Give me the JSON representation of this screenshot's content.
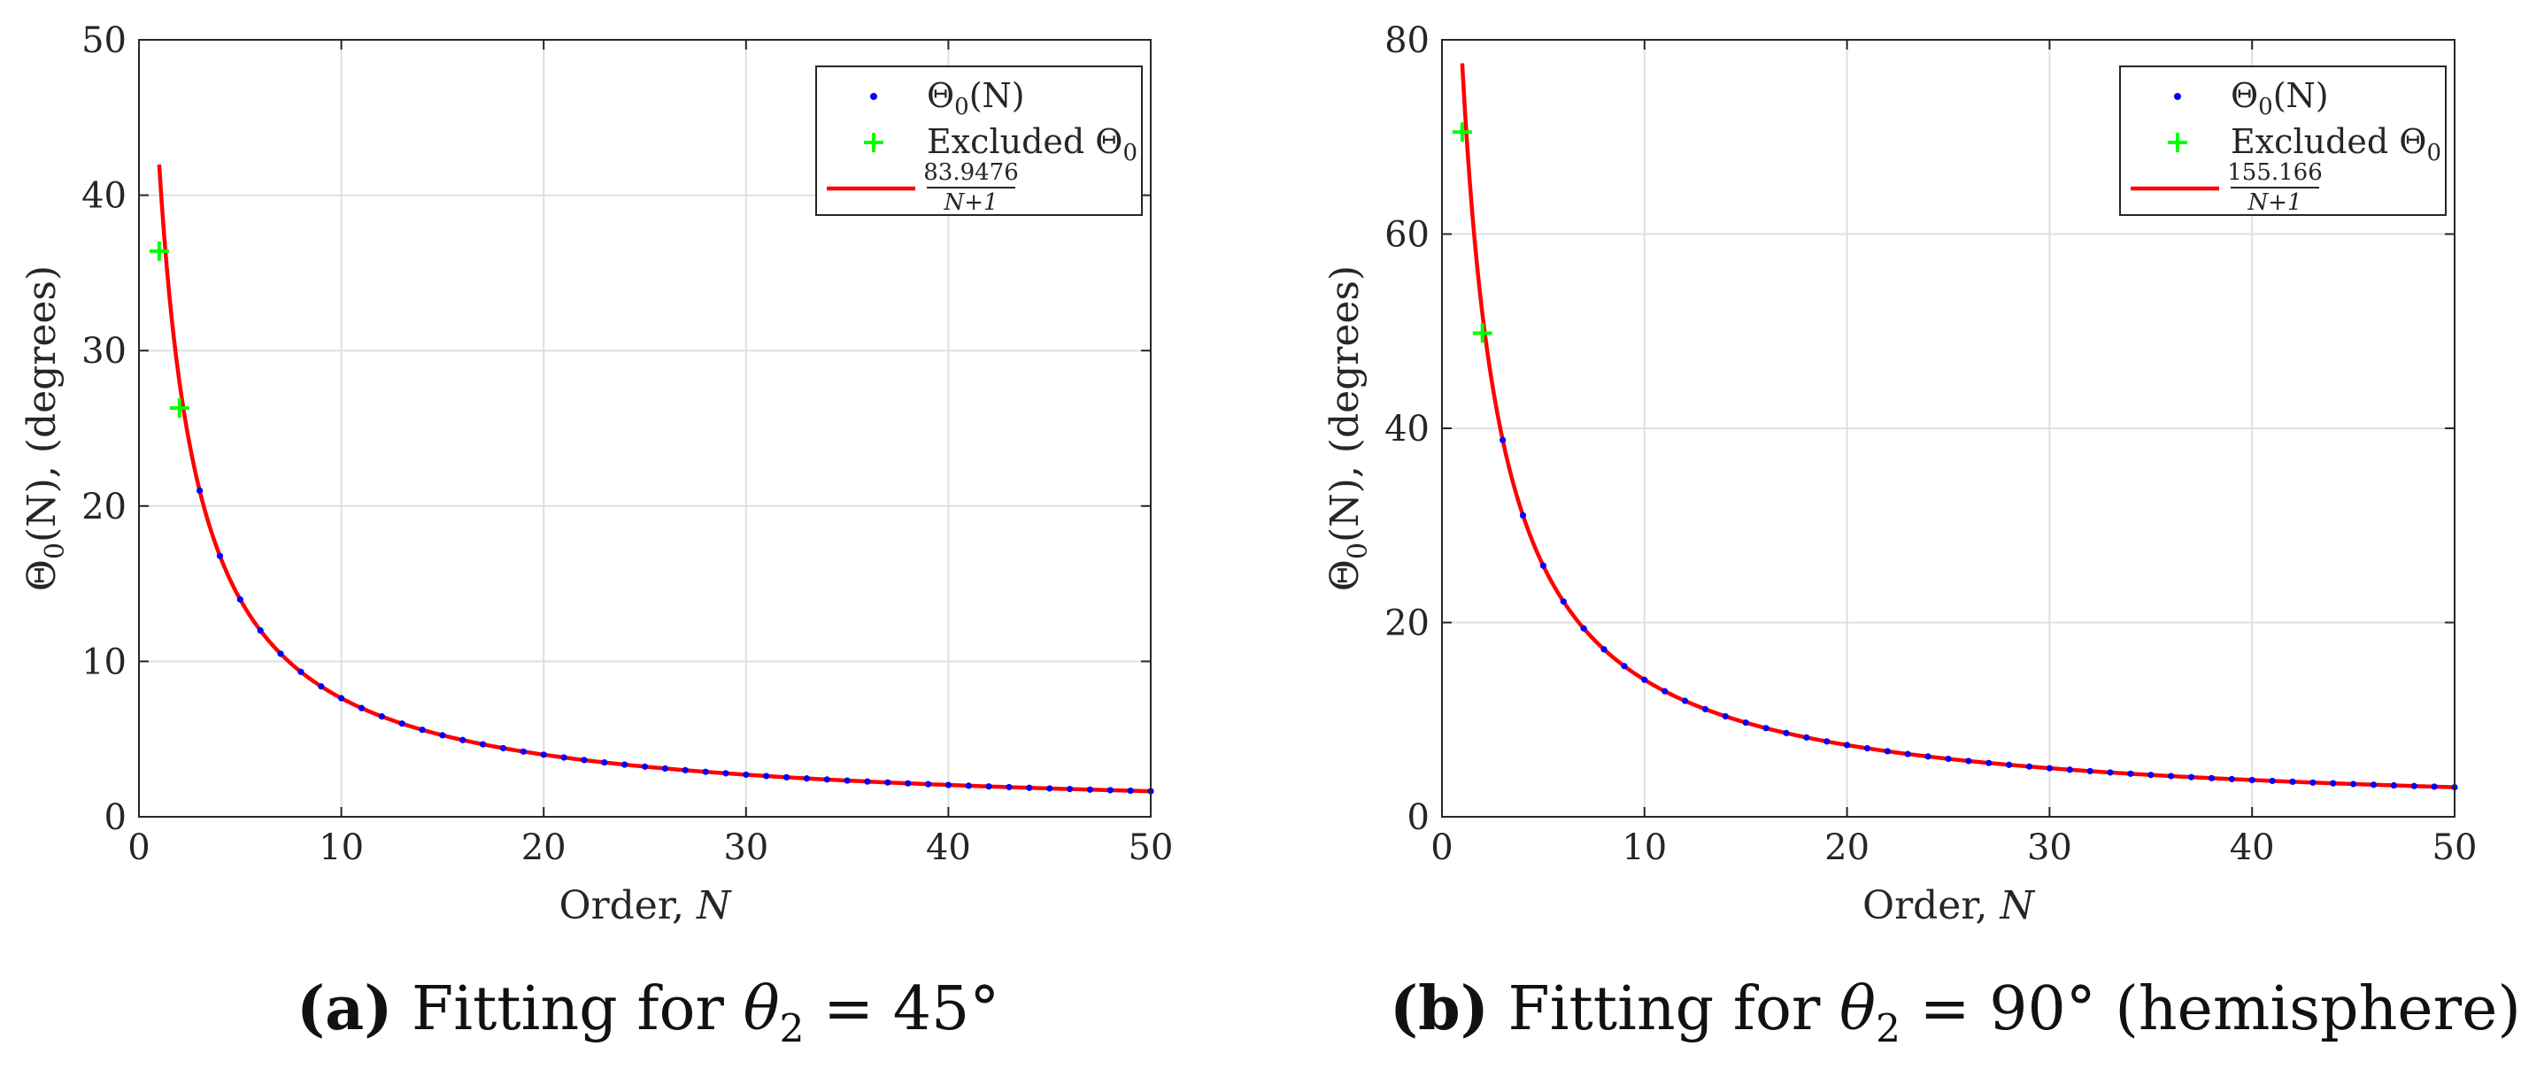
{
  "chart_data": [
    {
      "id": "a",
      "type": "scatter+line",
      "xlabel_main": "Order,",
      "xlabel_var": "N",
      "ylabel_theta": "Θ",
      "ylabel_sub": "0",
      "ylabel_rest": "(N),  (degrees)",
      "xlim": [
        0,
        50
      ],
      "ylim": [
        0,
        50
      ],
      "xticks": [
        0,
        10,
        20,
        30,
        40,
        50
      ],
      "yticks": [
        0,
        10,
        20,
        30,
        40,
        50
      ],
      "grid": true,
      "legend_position": "top-right",
      "legend": {
        "points_theta": "Θ",
        "points_sub": "0",
        "points_rest": "(N)",
        "excluded_main": "Excluded Θ",
        "excluded_sub": "0",
        "fit_numerator": "83.9476",
        "fit_denominator": "N+1"
      },
      "fit_coefficient": 83.9476,
      "points_N": [
        3,
        4,
        5,
        6,
        7,
        8,
        9,
        10,
        11,
        12,
        13,
        14,
        15,
        16,
        17,
        18,
        19,
        20,
        21,
        22,
        23,
        24,
        25,
        26,
        27,
        28,
        29,
        30,
        31,
        32,
        33,
        34,
        35,
        36,
        37,
        38,
        39,
        40,
        41,
        42,
        43,
        44,
        45,
        46,
        47,
        48,
        49,
        50
      ],
      "excluded": [
        {
          "N": 1,
          "value": 36.4
        },
        {
          "N": 2,
          "value": 26.3
        }
      ],
      "colors": {
        "points": "#0000ff",
        "excluded": "#00ff00",
        "fit": "#ff0000"
      },
      "caption": {
        "label": "(a)",
        "text": "Fitting for",
        "var": "θ",
        "sub": "2",
        "rest": "= 45°"
      }
    },
    {
      "id": "b",
      "type": "scatter+line",
      "xlabel_main": "Order,",
      "xlabel_var": "N",
      "ylabel_theta": "Θ",
      "ylabel_sub": "0",
      "ylabel_rest": "(N),  (degrees)",
      "xlim": [
        0,
        50
      ],
      "ylim": [
        0,
        80
      ],
      "xticks": [
        0,
        10,
        20,
        30,
        40,
        50
      ],
      "yticks": [
        0,
        20,
        40,
        60,
        80
      ],
      "grid": true,
      "legend_position": "top-right",
      "legend": {
        "points_theta": "Θ",
        "points_sub": "0",
        "points_rest": "(N)",
        "excluded_main": "Excluded Θ",
        "excluded_sub": "0",
        "fit_numerator": "155.166",
        "fit_denominator": "N+1"
      },
      "fit_coefficient": 155.166,
      "points_N": [
        3,
        4,
        5,
        6,
        7,
        8,
        9,
        10,
        11,
        12,
        13,
        14,
        15,
        16,
        17,
        18,
        19,
        20,
        21,
        22,
        23,
        24,
        25,
        26,
        27,
        28,
        29,
        30,
        31,
        32,
        33,
        34,
        35,
        36,
        37,
        38,
        39,
        40,
        41,
        42,
        43,
        44,
        45,
        46,
        47,
        48,
        49,
        50
      ],
      "excluded": [
        {
          "N": 1,
          "value": 70.5
        },
        {
          "N": 2,
          "value": 49.8
        }
      ],
      "colors": {
        "points": "#0000ff",
        "excluded": "#00ff00",
        "fit": "#ff0000"
      },
      "caption": {
        "label": "(b)",
        "text": "Fitting for",
        "var": "θ",
        "sub": "2",
        "rest": "= 90° (hemisphere)"
      }
    }
  ]
}
